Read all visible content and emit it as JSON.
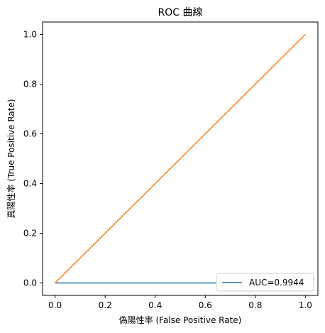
{
  "chart_data": {
    "type": "line",
    "title": "ROC 曲線",
    "xlabel": "偽陽性率 (False Positive Rate)",
    "ylabel": "真陽性率 (True Positive Rate)",
    "xlim": [
      -0.05,
      1.05
    ],
    "ylim": [
      -0.05,
      1.05
    ],
    "xticks": [
      0.0,
      0.2,
      0.4,
      0.6,
      0.8,
      1.0
    ],
    "xtick_labels": [
      "0.0",
      "0.2",
      "0.4",
      "0.6",
      "0.8",
      "1.0"
    ],
    "yticks": [
      0.0,
      0.2,
      0.4,
      0.6,
      0.8,
      1.0
    ],
    "ytick_labels": [
      "0.0",
      "0.2",
      "0.4",
      "0.6",
      "0.8",
      "1.0"
    ],
    "grid": false,
    "legend_position": "bottom-right",
    "series": [
      {
        "name": "AUC=0.9944",
        "color": "#1f77b4",
        "x": [
          0.0,
          0.0,
          0.0,
          0.0278,
          0.0278,
          0.0278,
          0.0278,
          0.0417,
          0.0417,
          0.0556,
          0.0556,
          0.0556,
          0.0694,
          0.0694,
          0.0833,
          0.0833,
          0.0972,
          0.0972,
          0.1111,
          0.1111,
          0.1111,
          1.0
        ],
        "y": [
          0.0,
          0.0,
          0.0,
          0.0,
          0.0,
          0.0,
          0.0,
          0.0,
          0.0,
          0.0,
          0.0,
          0.0,
          0.0,
          0.0,
          0.0,
          0.0,
          0.0,
          0.0,
          0.0,
          0.0,
          0.0,
          0.0
        ]
      },
      {
        "name": "",
        "color": "#ff7f0e",
        "x": [
          0.0,
          1.0
        ],
        "y": [
          0.0,
          1.0
        ]
      }
    ]
  }
}
